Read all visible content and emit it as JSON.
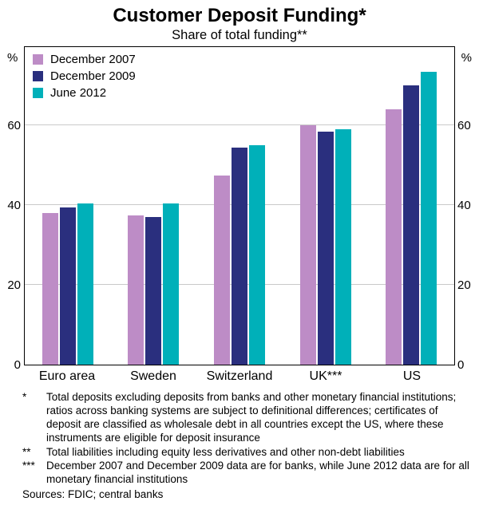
{
  "chart_data": {
    "type": "bar",
    "title": "Customer Deposit Funding*",
    "subtitle": "Share of total funding**",
    "unit": "%",
    "categories": [
      "Euro area",
      "Sweden",
      "Switzerland",
      "UK***",
      "US"
    ],
    "series": [
      {
        "name": "December 2007",
        "color": "#BD8CC6",
        "values": [
          38,
          37.5,
          47.5,
          60,
          64
        ]
      },
      {
        "name": "December 2009",
        "color": "#2A2F7E",
        "values": [
          39.5,
          37,
          54.5,
          58.5,
          70
        ]
      },
      {
        "name": "June 2012",
        "color": "#00B0B9",
        "values": [
          40.5,
          40.5,
          55,
          59,
          73.5
        ]
      }
    ],
    "ylim": [
      0,
      80
    ],
    "yticks": [
      0,
      20,
      40,
      60
    ],
    "grid": true,
    "legend_position": "top-left",
    "xlabel": "",
    "ylabel": "%"
  },
  "footnotes": [
    {
      "marker": "*",
      "text": "Total deposits excluding deposits from banks and other monetary financial institutions; ratios across banking systems are subject to definitional differences; certificates of deposit are classified as wholesale debt in all countries except the US, where these instruments are eligible for deposit insurance"
    },
    {
      "marker": "**",
      "text": "Total liabilities including equity less derivatives and other non-debt liabilities"
    },
    {
      "marker": "***",
      "text": "December 2007 and December 2009 data are for banks, while June 2012 data are for all monetary financial institutions"
    }
  ],
  "sources": "Sources: FDIC; central banks"
}
